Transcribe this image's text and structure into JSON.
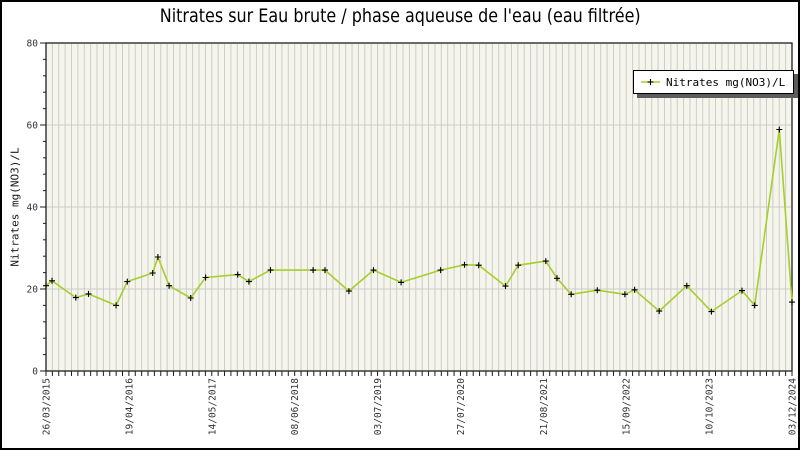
{
  "colors": {
    "line": "#a6ce2c",
    "marker": "#000000",
    "plot_bg": "#f5f5ec",
    "grid": "#cccccc",
    "axis": "#1c1c1c",
    "tick_text": "#333333",
    "legend_shadow": "#5c5c5c",
    "outer_frame": "#000000"
  },
  "chart_data": {
    "type": "line",
    "title": "Nitrates sur Eau brute / phase aqueuse de l'eau (eau filtrée)",
    "ylabel": "Nitrates mg(NO3)/L",
    "ylim": [
      0,
      80
    ],
    "y_major_ticks": [
      0,
      20,
      40,
      60,
      80
    ],
    "y_minor_step": 4,
    "grid": {
      "h_lines": [
        20,
        40,
        60
      ],
      "v_minor_intervals": 117
    },
    "x_tick_labels": [
      "26/03/2015",
      "19/04/2016",
      "14/05/2017",
      "08/06/2018",
      "03/07/2019",
      "27/07/2020",
      "21/08/2021",
      "15/09/2022",
      "10/10/2023",
      "03/12/2024"
    ],
    "legend": {
      "position": "top-right"
    },
    "series": [
      {
        "name": "Nitrates mg(NO3)/L",
        "color": "#a6ce2c",
        "marker": "+",
        "marker_color": "#000000",
        "points": [
          [
            0.0,
            20.8
          ],
          [
            0.008,
            22.0
          ],
          [
            0.04,
            17.9
          ],
          [
            0.057,
            18.8
          ],
          [
            0.094,
            16.0
          ],
          [
            0.109,
            21.8
          ],
          [
            0.143,
            23.9
          ],
          [
            0.15,
            27.8
          ],
          [
            0.165,
            20.8
          ],
          [
            0.194,
            17.8
          ],
          [
            0.214,
            22.8
          ],
          [
            0.257,
            23.5
          ],
          [
            0.272,
            21.8
          ],
          [
            0.301,
            24.6
          ],
          [
            0.358,
            24.6
          ],
          [
            0.374,
            24.6
          ],
          [
            0.406,
            19.5
          ],
          [
            0.439,
            24.6
          ],
          [
            0.476,
            21.6
          ],
          [
            0.529,
            24.6
          ],
          [
            0.561,
            25.9
          ],
          [
            0.58,
            25.8
          ],
          [
            0.616,
            20.7
          ],
          [
            0.633,
            25.8
          ],
          [
            0.67,
            26.8
          ],
          [
            0.685,
            22.6
          ],
          [
            0.704,
            18.7
          ],
          [
            0.739,
            19.7
          ],
          [
            0.776,
            18.7
          ],
          [
            0.789,
            19.8
          ],
          [
            0.822,
            14.6
          ],
          [
            0.859,
            20.8
          ],
          [
            0.892,
            14.5
          ],
          [
            0.933,
            19.6
          ],
          [
            0.95,
            16.0
          ],
          [
            0.983,
            58.9
          ],
          [
            1.0,
            16.8
          ]
        ]
      }
    ]
  }
}
